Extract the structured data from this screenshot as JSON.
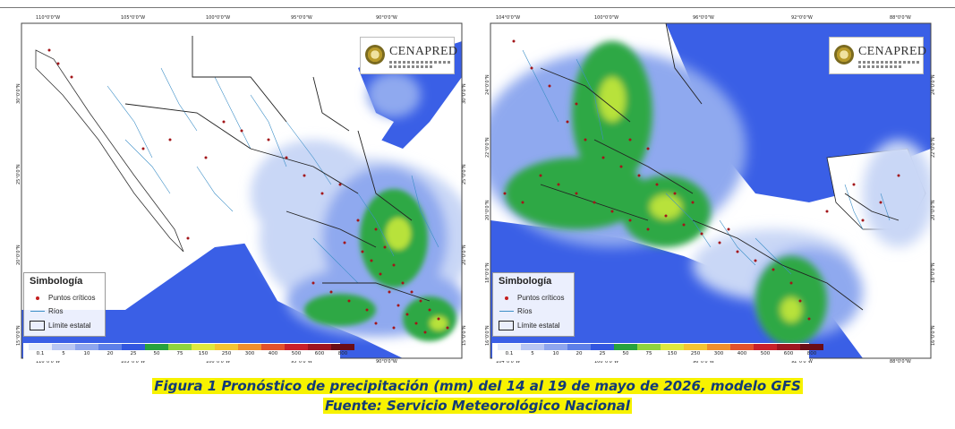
{
  "colors": {
    "ocean": "#3a5fe6",
    "land": "#ffffff",
    "precip_light": "#c9d7f6",
    "precip_low": "#8fa9ef",
    "precip_mid": "#2ea844",
    "precip_high": "#b8e23a",
    "points": "#a3161a",
    "rivers": "#3d8fc7",
    "caption_text": "#123a78",
    "caption_highlight": "#f7f200"
  },
  "maps": [
    {
      "top_ticks": [
        "110°0'0\"W",
        "105°0'0\"W",
        "100°0'0\"W",
        "95°0'0\"W",
        "90°0'0\"W"
      ],
      "bottom_ticks": [
        "110°0'0\"W",
        "105°0'0\"W",
        "100°0'0\"W",
        "95°0'0\"W",
        "90°0'0\"W"
      ],
      "left_ticks": [
        "30°0'0\"N",
        "25°0'0\"N",
        "20°0'0\"N",
        "15°0'0\"N"
      ],
      "right_ticks": [
        "30°0'0\"N",
        "25°0'0\"N",
        "20°0'0\"N",
        "15°0'0\"N"
      ],
      "logo": {
        "name": "CENAPRED",
        "icon": "cenapred-seal-icon"
      },
      "legend": {
        "title": "Simbología",
        "items": [
          "Puntos críticos",
          "Ríos",
          "Límite estatal"
        ]
      }
    },
    {
      "top_ticks": [
        "104°0'0\"W",
        "100°0'0\"W",
        "96°0'0\"W",
        "92°0'0\"W",
        "88°0'0\"W"
      ],
      "bottom_ticks": [
        "104°0'0\"W",
        "100°0'0\"W",
        "96°0'0\"W",
        "92°0'0\"W",
        "88°0'0\"W"
      ],
      "left_ticks": [
        "24°0'0\"N",
        "22°0'0\"N",
        "20°0'0\"N",
        "18°0'0\"N",
        "16°0'0\"N"
      ],
      "right_ticks": [
        "24°0'0\"N",
        "22°0'0\"N",
        "20°0'0\"N",
        "18°0'0\"N",
        "16°0'0\"N"
      ],
      "logo": {
        "name": "CENAPRED",
        "icon": "cenapred-seal-icon"
      },
      "legend": {
        "title": "Simbología",
        "items": [
          "Puntos críticos",
          "Ríos",
          "Límite estatal"
        ]
      }
    }
  ],
  "color_scale": {
    "labels": [
      "0.1",
      "5",
      "10",
      "20",
      "25",
      "50",
      "75",
      "150",
      "250",
      "300",
      "400",
      "500",
      "600",
      "800"
    ],
    "colors": [
      "#e6ecfb",
      "#b8c7f3",
      "#8ea6ee",
      "#5d7fe8",
      "#3256e0",
      "#27a23c",
      "#8fd43c",
      "#dfe83d",
      "#f5c531",
      "#ef8f2d",
      "#e2522b",
      "#c9202a",
      "#9e1420",
      "#6b0d16"
    ]
  },
  "caption": {
    "title": "Figura 1 Pronóstico de precipitación (mm) del 14 al 19 de mayo de 2026, modelo GFS",
    "source": "Fuente: Servicio Meteorológico Nacional"
  }
}
